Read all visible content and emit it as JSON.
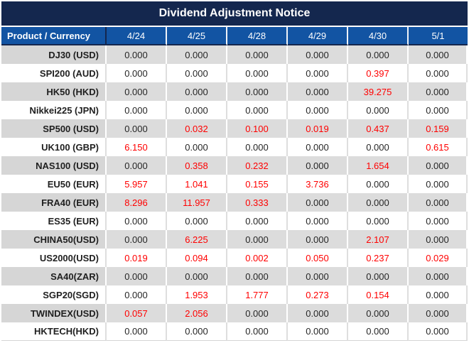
{
  "title": "Dividend Adjustment Notice",
  "colors": {
    "title_bg": "#14274e",
    "header_bg": "#1254a3",
    "stripe_bg": "#dcdcdc",
    "stripe_label_bg": "#d6d6d6",
    "zero_text": "#262626",
    "nonzero_text": "#ff0000"
  },
  "chart_data": {
    "type": "table",
    "title": "Dividend Adjustment Notice",
    "columns": [
      "Product / Currency",
      "4/24",
      "4/25",
      "4/28",
      "4/29",
      "4/30",
      "5/1"
    ],
    "value_format": "nonzero values shown in red",
    "rows": [
      {
        "product": "DJ30 (USD)",
        "values": [
          "0.000",
          "0.000",
          "0.000",
          "0.000",
          "0.000",
          "0.000"
        ]
      },
      {
        "product": "SPI200 (AUD)",
        "values": [
          "0.000",
          "0.000",
          "0.000",
          "0.000",
          "0.397",
          "0.000"
        ]
      },
      {
        "product": "HK50 (HKD)",
        "values": [
          "0.000",
          "0.000",
          "0.000",
          "0.000",
          "39.275",
          "0.000"
        ]
      },
      {
        "product": "Nikkei225 (JPN)",
        "values": [
          "0.000",
          "0.000",
          "0.000",
          "0.000",
          "0.000",
          "0.000"
        ]
      },
      {
        "product": "SP500 (USD)",
        "values": [
          "0.000",
          "0.032",
          "0.100",
          "0.019",
          "0.437",
          "0.159"
        ]
      },
      {
        "product": "UK100 (GBP)",
        "values": [
          "6.150",
          "0.000",
          "0.000",
          "0.000",
          "0.000",
          "0.615"
        ]
      },
      {
        "product": "NAS100 (USD)",
        "values": [
          "0.000",
          "0.358",
          "0.232",
          "0.000",
          "1.654",
          "0.000"
        ]
      },
      {
        "product": "EU50 (EUR)",
        "values": [
          "5.957",
          "1.041",
          "0.155",
          "3.736",
          "0.000",
          "0.000"
        ]
      },
      {
        "product": "FRA40 (EUR)",
        "values": [
          "8.296",
          "11.957",
          "0.333",
          "0.000",
          "0.000",
          "0.000"
        ]
      },
      {
        "product": "ES35 (EUR)",
        "values": [
          "0.000",
          "0.000",
          "0.000",
          "0.000",
          "0.000",
          "0.000"
        ]
      },
      {
        "product": "CHINA50(USD)",
        "values": [
          "0.000",
          "6.225",
          "0.000",
          "0.000",
          "2.107",
          "0.000"
        ]
      },
      {
        "product": "US2000(USD)",
        "values": [
          "0.019",
          "0.094",
          "0.002",
          "0.050",
          "0.237",
          "0.029"
        ]
      },
      {
        "product": "SA40(ZAR)",
        "values": [
          "0.000",
          "0.000",
          "0.000",
          "0.000",
          "0.000",
          "0.000"
        ]
      },
      {
        "product": "SGP20(SGD)",
        "values": [
          "0.000",
          "1.953",
          "1.777",
          "0.273",
          "0.154",
          "0.000"
        ]
      },
      {
        "product": "TWINDEX(USD)",
        "values": [
          "0.057",
          "2.056",
          "0.000",
          "0.000",
          "0.000",
          "0.000"
        ]
      },
      {
        "product": "HKTECH(HKD)",
        "values": [
          "0.000",
          "0.000",
          "0.000",
          "0.000",
          "0.000",
          "0.000"
        ]
      }
    ]
  }
}
